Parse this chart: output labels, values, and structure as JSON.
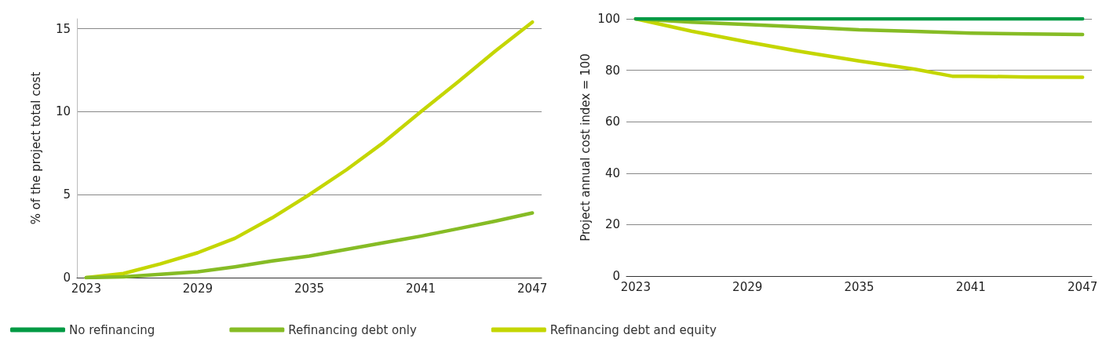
{
  "chart_data": [
    {
      "type": "line",
      "ylabel": "% of the project total cost",
      "xlim": [
        2022.5,
        2047.5
      ],
      "xticks": [
        2023,
        2029,
        2035,
        2041,
        2047
      ],
      "ylim": [
        0,
        15.6
      ],
      "yticks": [
        0,
        5,
        10,
        15
      ],
      "grid": "y",
      "marker": "none",
      "line_style": "solid",
      "series": [
        {
          "color": "#86bc25",
          "x": [
            2023,
            2025,
            2027,
            2029,
            2031,
            2033,
            2035,
            2037,
            2039,
            2041,
            2043,
            2045,
            2047
          ],
          "values": [
            0,
            0.05,
            0.2,
            0.35,
            0.65,
            1.0,
            1.3,
            1.7,
            2.1,
            2.5,
            2.95,
            3.4,
            3.9
          ]
        },
        {
          "color": "#c4d600",
          "x": [
            2023,
            2025,
            2027,
            2029,
            2031,
            2033,
            2035,
            2037,
            2039,
            2041,
            2043,
            2045,
            2047
          ],
          "values": [
            0,
            0.25,
            0.83,
            1.5,
            2.37,
            3.6,
            5.0,
            6.5,
            8.15,
            10.0,
            11.8,
            13.65,
            15.4
          ]
        }
      ]
    },
    {
      "type": "line",
      "ylabel": "Project annual cost index = 100",
      "xlim": [
        2022.5,
        2047.5
      ],
      "xticks": [
        2023,
        2029,
        2035,
        2041,
        2047
      ],
      "ylim": [
        0,
        100
      ],
      "yticks": [
        0,
        20,
        40,
        60,
        80,
        100
      ],
      "grid": "y",
      "marker": "none",
      "line_style": "solid",
      "legend": "bottom left",
      "series": [
        {
          "name": "No refinancing",
          "color": "#009a44",
          "x": [
            2023,
            2047
          ],
          "values": [
            100,
            100
          ]
        },
        {
          "name": "Refinancing debt only",
          "color": "#86bc25",
          "x": [
            2023,
            2026,
            2029,
            2032,
            2035,
            2038,
            2041,
            2044,
            2047
          ],
          "values": [
            100,
            98.7,
            97.8,
            96.8,
            95.7,
            95.1,
            94.4,
            94.1,
            93.9
          ]
        },
        {
          "name": "Refinancing debt and equity",
          "color": "#c4d600",
          "x": [
            2023,
            2026,
            2029,
            2032,
            2035,
            2038,
            2040,
            2041,
            2044,
            2047
          ],
          "values": [
            100,
            95.2,
            91,
            87.1,
            83.6,
            80.4,
            77.7,
            77.7,
            77.4,
            77.3
          ]
        }
      ]
    }
  ]
}
